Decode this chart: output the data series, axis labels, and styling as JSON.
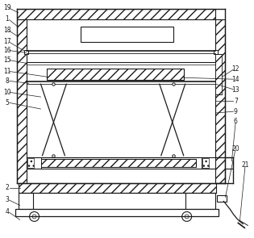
{
  "figsize": [
    3.15,
    2.95
  ],
  "dpi": 100,
  "bg_color": "#ffffff",
  "line_color": "#1a1a1a"
}
